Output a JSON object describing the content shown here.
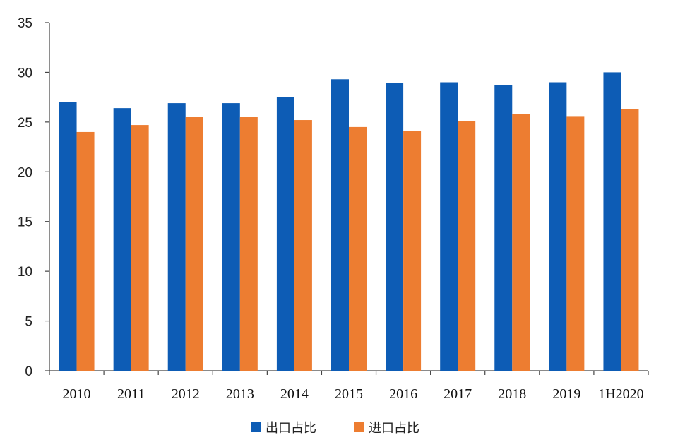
{
  "chart_data": {
    "type": "bar",
    "title": "",
    "xlabel": "",
    "ylabel": "",
    "categories": [
      "2010",
      "2011",
      "2012",
      "2013",
      "2014",
      "2015",
      "2016",
      "2017",
      "2018",
      "2019",
      "1H2020"
    ],
    "series": [
      {
        "name": "出口占比",
        "color": "#0d5cb5",
        "values": [
          27.0,
          26.4,
          26.9,
          26.9,
          27.5,
          29.3,
          28.9,
          29.0,
          28.7,
          29.0,
          30.0
        ]
      },
      {
        "name": "进口占比",
        "color": "#ed7d31",
        "values": [
          24.0,
          24.7,
          25.5,
          25.5,
          25.2,
          24.5,
          24.1,
          25.1,
          25.8,
          25.6,
          26.3
        ]
      }
    ],
    "ylim": [
      0,
      35
    ],
    "yticks": [
      "0",
      "5",
      "10",
      "15",
      "20",
      "25",
      "30",
      "35"
    ],
    "grid": false,
    "legend_position": "bottom-center"
  }
}
